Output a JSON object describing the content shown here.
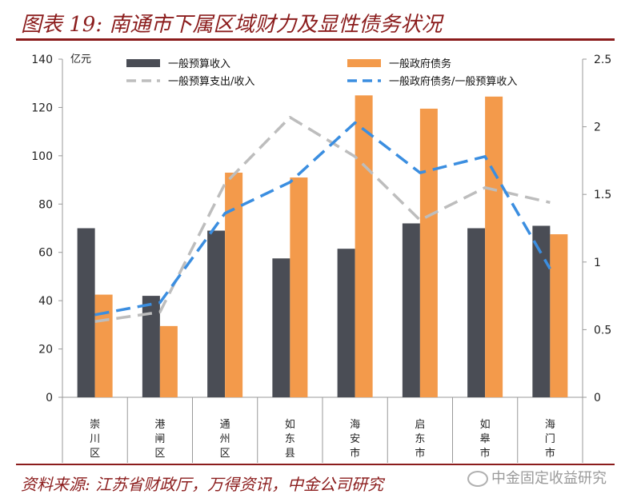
{
  "header": {
    "title": "图表 19:  南通市下属区域财力及显性债务状况"
  },
  "footer": {
    "source": "资料来源:  江苏省财政厅，万得资讯，中金公司研究",
    "watermark": "中金固定收益研究"
  },
  "colors": {
    "brand": "#8b1c1c",
    "revenue_bar": "#4a4d55",
    "debt_bar": "#f39a4b",
    "expenditure_line": "#bdbdbd",
    "debt_ratio_line": "#3b8ee0"
  },
  "chart_data": {
    "type": "bar",
    "title": "",
    "ylabel": "亿元",
    "ylim": [
      0,
      140
    ],
    "yticks": [
      "0",
      "20",
      "40",
      "60",
      "80",
      "100",
      "120",
      "140"
    ],
    "y2lim": [
      0,
      2.5
    ],
    "y2ticks": [
      "0",
      "0.5",
      "1",
      "1.5",
      "2",
      "2.5"
    ],
    "categories": [
      "崇川区",
      "港闸区",
      "通州区",
      "如东县",
      "海安市",
      "启东市",
      "如皋市",
      "海门市"
    ],
    "series": [
      {
        "name": "一般预算收入",
        "type": "bar",
        "axis": "left",
        "color": "#4a4d55",
        "values": [
          70,
          42,
          69,
          57.5,
          61.5,
          72,
          70,
          71
        ]
      },
      {
        "name": "一般政府债务",
        "type": "bar",
        "axis": "left",
        "color": "#f39a4b",
        "values": [
          42.5,
          29.5,
          93,
          91,
          125,
          119.5,
          124.5,
          67.5
        ]
      },
      {
        "name": "一般预算支出/收入",
        "type": "line",
        "axis": "right",
        "color": "#bdbdbd",
        "values": [
          0.56,
          0.63,
          1.58,
          2.07,
          1.78,
          1.31,
          1.55,
          1.44
        ]
      },
      {
        "name": "一般政府债务/一般预算收入",
        "type": "line",
        "axis": "right",
        "color": "#3b8ee0",
        "values": [
          0.61,
          0.7,
          1.36,
          1.59,
          2.03,
          1.66,
          1.78,
          0.95
        ]
      }
    ],
    "legend": "top"
  }
}
